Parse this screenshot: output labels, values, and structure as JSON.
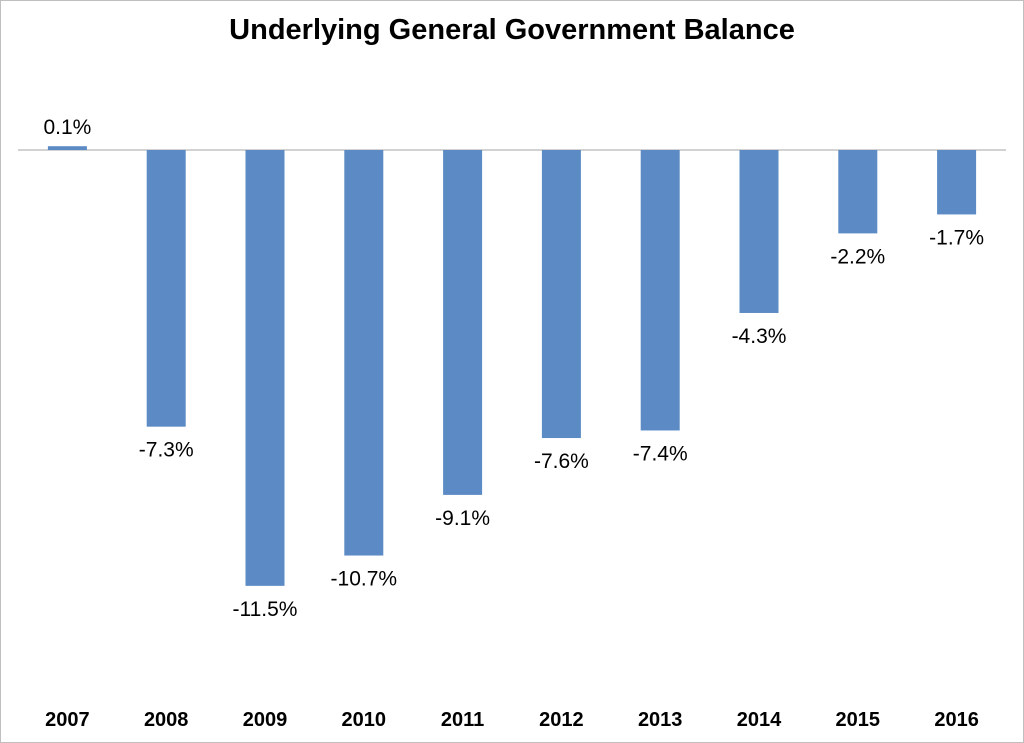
{
  "chart_data": {
    "type": "bar",
    "title": "Underlying General Government Balance",
    "xlabel": "",
    "ylabel": "",
    "categories": [
      "2007",
      "2008",
      "2009",
      "2010",
      "2011",
      "2012",
      "2013",
      "2014",
      "2015",
      "2016"
    ],
    "values": [
      0.1,
      -7.3,
      -11.5,
      -10.7,
      -9.1,
      -7.6,
      -7.4,
      -4.3,
      -2.2,
      -1.7
    ],
    "data_labels": [
      "0.1%",
      "-7.3%",
      "-11.5%",
      "-10.7%",
      "-9.1%",
      "-7.6%",
      "-7.4%",
      "-4.3%",
      "-2.2%",
      "-1.7%"
    ],
    "ylim": [
      -12,
      0.5
    ],
    "grid": false,
    "legend": "none",
    "bar_color": "#5b8ac4",
    "axis_color": "#a6a6a6"
  }
}
